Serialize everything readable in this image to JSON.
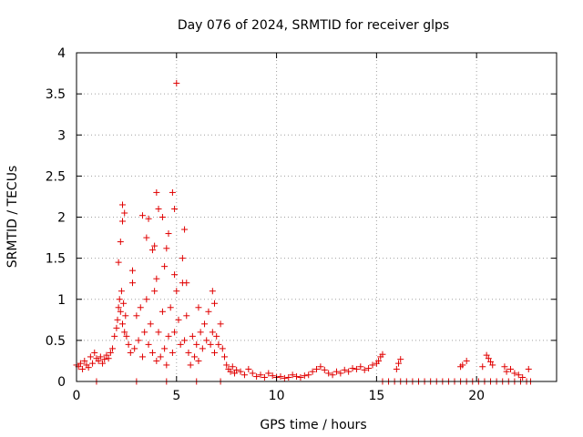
{
  "chart_data": {
    "type": "scatter",
    "title": "Day 076 of 2024, SRMTID for receiver glps",
    "xlabel": "GPS time / hours",
    "ylabel": "SRMTID / TECUs",
    "xlim": [
      0,
      24
    ],
    "ylim": [
      0,
      4
    ],
    "xticks": [
      0,
      5,
      10,
      15,
      20
    ],
    "yticks": [
      0,
      0.5,
      1,
      1.5,
      2,
      2.5,
      3,
      3.5,
      4
    ],
    "xtick_labels": [
      "0",
      "5",
      "10",
      "15",
      "20"
    ],
    "ytick_labels": [
      "0",
      "0.5",
      "1",
      "1.5",
      "2",
      "2.5",
      "3",
      "3.5",
      "4"
    ],
    "grid": true,
    "marker": "+",
    "color": "#e00000",
    "series": [
      {
        "name": "SRMTID",
        "x": [
          0.0,
          0.1,
          0.2,
          0.3,
          0.4,
          0.5,
          0.6,
          0.7,
          0.8,
          0.9,
          1.0,
          1.1,
          1.2,
          1.3,
          1.4,
          1.5,
          1.6,
          1.7,
          1.8,
          1.9,
          2.0,
          2.05,
          2.1,
          2.15,
          2.2,
          2.25,
          2.3,
          2.35,
          2.4,
          2.45,
          2.5,
          2.6,
          2.7,
          2.8,
          2.9,
          3.0,
          3.1,
          3.2,
          3.3,
          3.4,
          3.5,
          3.6,
          3.7,
          3.8,
          3.9,
          4.0,
          4.1,
          4.2,
          4.3,
          4.4,
          4.5,
          4.6,
          4.7,
          4.8,
          4.9,
          5.0,
          5.1,
          5.2,
          5.3,
          5.4,
          5.5,
          5.6,
          5.7,
          5.8,
          5.9,
          6.0,
          6.1,
          6.2,
          6.3,
          6.4,
          6.5,
          6.6,
          6.7,
          6.8,
          6.9,
          7.0,
          7.1,
          7.2,
          7.3,
          7.4,
          7.5,
          7.6,
          7.7,
          7.8,
          7.9,
          8.0,
          8.2,
          8.4,
          8.6,
          8.8,
          9.0,
          9.2,
          9.4,
          9.6,
          9.8,
          10.0,
          10.2,
          10.4,
          10.6,
          10.8,
          11.0,
          11.2,
          11.4,
          11.6,
          11.8,
          12.0,
          12.2,
          12.4,
          12.6,
          12.8,
          13.0,
          13.2,
          13.4,
          13.6,
          13.8,
          14.0,
          14.2,
          14.4,
          14.6,
          14.8,
          15.0,
          15.1,
          15.2,
          15.3,
          2.3,
          2.3,
          2.2,
          2.4,
          3.3,
          3.5,
          3.6,
          4.0,
          4.1,
          4.3,
          4.5,
          4.6,
          4.8,
          4.9,
          5.0,
          5.3,
          5.4,
          4.9,
          4.4,
          4.0,
          3.8,
          6.8,
          6.9,
          2.1,
          2.8,
          3.9,
          5.5,
          6.1,
          16.0,
          16.1,
          16.2,
          19.2,
          19.3,
          19.5,
          20.3,
          20.5,
          20.6,
          20.7,
          20.8,
          21.4,
          21.5,
          21.7,
          21.9,
          22.1,
          22.3,
          22.6,
          15.3,
          15.6,
          15.9,
          16.2,
          16.5,
          16.8,
          17.1,
          17.4,
          17.7,
          18.0,
          18.3,
          18.6,
          18.9,
          19.2,
          19.5,
          19.8,
          20.1,
          20.4,
          20.7,
          21.0,
          21.3,
          21.6,
          21.9,
          22.2,
          22.5,
          22.7,
          1.0,
          3.0,
          4.5,
          6.0,
          7.2
        ],
        "y": [
          0.2,
          0.18,
          0.22,
          0.15,
          0.25,
          0.2,
          0.17,
          0.3,
          0.22,
          0.35,
          0.28,
          0.25,
          0.3,
          0.22,
          0.27,
          0.32,
          0.28,
          0.35,
          0.4,
          0.55,
          0.65,
          0.75,
          0.9,
          1.0,
          0.85,
          1.1,
          0.7,
          0.95,
          0.6,
          0.8,
          0.55,
          0.45,
          0.35,
          1.2,
          0.4,
          0.8,
          0.5,
          0.9,
          0.3,
          0.6,
          1.0,
          0.45,
          0.7,
          0.35,
          1.1,
          0.25,
          0.6,
          0.3,
          0.85,
          0.4,
          0.2,
          0.55,
          0.9,
          0.35,
          0.6,
          1.1,
          0.75,
          0.45,
          1.2,
          0.5,
          0.8,
          0.35,
          0.2,
          0.55,
          0.3,
          0.45,
          0.25,
          0.6,
          0.4,
          0.7,
          0.5,
          0.85,
          0.45,
          0.6,
          0.35,
          0.55,
          0.45,
          0.7,
          0.4,
          0.3,
          0.2,
          0.15,
          0.12,
          0.18,
          0.1,
          0.14,
          0.12,
          0.08,
          0.15,
          0.1,
          0.06,
          0.08,
          0.05,
          0.1,
          0.07,
          0.05,
          0.06,
          0.04,
          0.05,
          0.08,
          0.06,
          0.05,
          0.07,
          0.08,
          0.12,
          0.15,
          0.18,
          0.14,
          0.1,
          0.08,
          0.12,
          0.1,
          0.14,
          0.12,
          0.16,
          0.15,
          0.18,
          0.14,
          0.16,
          0.2,
          0.22,
          0.25,
          0.3,
          0.33,
          1.95,
          2.15,
          1.7,
          2.05,
          2.02,
          1.75,
          1.98,
          2.3,
          2.1,
          2.0,
          1.62,
          1.8,
          2.3,
          2.1,
          3.63,
          1.5,
          1.85,
          1.3,
          1.4,
          1.25,
          1.6,
          1.1,
          0.95,
          1.45,
          1.35,
          1.65,
          1.2,
          0.9,
          0.15,
          0.22,
          0.27,
          0.18,
          0.2,
          0.25,
          0.18,
          0.32,
          0.28,
          0.24,
          0.2,
          0.18,
          0.12,
          0.15,
          0.1,
          0.08,
          0.05,
          0.15,
          0,
          0,
          0,
          0,
          0,
          0,
          0,
          0,
          0,
          0,
          0,
          0,
          0,
          0,
          0,
          0,
          0,
          0,
          0,
          0,
          0,
          0,
          0,
          0,
          0,
          0,
          0,
          0,
          0,
          0,
          0
        ]
      }
    ]
  }
}
